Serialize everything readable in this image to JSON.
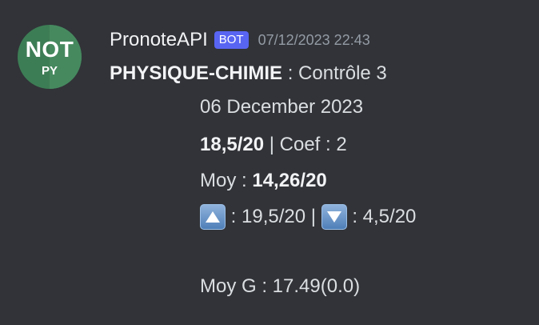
{
  "avatar": {
    "line1": "NOT",
    "line2": "PY",
    "colors": {
      "left": "#3d7d55",
      "right": "#46895f"
    }
  },
  "header": {
    "username": "PronoteAPI",
    "badge": "BOT",
    "timestamp": "07/12/2023 22:43"
  },
  "message": {
    "subject": "PHYSIQUE-CHIMIE",
    "title_sep": " : ",
    "title": "Contrôle 3",
    "date": "06 December 2023",
    "grade": "18,5/20",
    "coef_text": " | Coef : 2",
    "moy_label": "Moy : ",
    "moy_value": "14,26/20",
    "max_text": " : 19,5/20 | ",
    "min_text": " : 4,5/20",
    "moy_g": "Moy G : 17.49(0.0)"
  },
  "icons": {
    "max": "arrow-up-small-icon",
    "min": "arrow-down-small-icon"
  },
  "colors": {
    "background": "#313338",
    "badge": "#5865f2",
    "timestamp": "#949ba4"
  }
}
